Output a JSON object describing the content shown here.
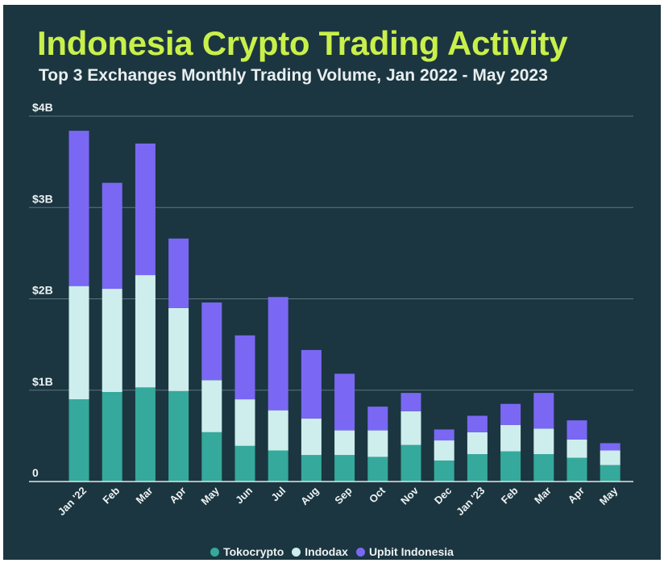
{
  "chart_data": {
    "type": "bar",
    "stacked": true,
    "title": "Indonesia Crypto Trading Activity",
    "subtitle": "Top 3 Exchanges Monthly Trading Volume, Jan 2022 - May 2023",
    "categories": [
      "Jan '22",
      "Feb",
      "Mar",
      "Apr",
      "May",
      "Jun",
      "Jul",
      "Aug",
      "Sep",
      "Oct",
      "Nov",
      "Dec",
      "Jan '23",
      "Feb",
      "Mar",
      "Apr",
      "May"
    ],
    "series": [
      {
        "name": "Tokocrypto",
        "color": "#35a99b",
        "values": [
          0.9,
          0.98,
          1.03,
          0.99,
          0.54,
          0.39,
          0.34,
          0.29,
          0.29,
          0.27,
          0.4,
          0.23,
          0.3,
          0.33,
          0.3,
          0.26,
          0.18
        ]
      },
      {
        "name": "Indodax",
        "color": "#cdeeed",
        "values": [
          1.24,
          1.13,
          1.23,
          0.91,
          0.57,
          0.51,
          0.44,
          0.4,
          0.27,
          0.29,
          0.37,
          0.22,
          0.24,
          0.29,
          0.28,
          0.2,
          0.16
        ]
      },
      {
        "name": "Upbit Indonesia",
        "color": "#7a68f4",
        "values": [
          1.7,
          1.16,
          1.44,
          0.76,
          0.85,
          0.7,
          1.24,
          0.75,
          0.62,
          0.26,
          0.2,
          0.12,
          0.18,
          0.23,
          0.39,
          0.21,
          0.08
        ]
      }
    ],
    "ylim": [
      0,
      4
    ],
    "yticks": [
      0,
      1,
      2,
      3,
      4
    ],
    "ytick_labels": [
      "0",
      "$1B",
      "$2B",
      "$3B",
      "$4B"
    ],
    "xlabel": "",
    "ylabel": "",
    "grid": true,
    "legend_position": "bottom-center"
  },
  "colors": {
    "background": "#1b3640",
    "title": "#c9f04a",
    "text": "#eef2f3",
    "grid": "#5d7780"
  }
}
